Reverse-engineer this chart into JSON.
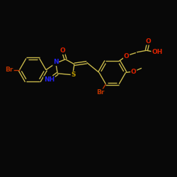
{
  "bg_color": "#080808",
  "bond_color": "#c8b84a",
  "atom_colors": {
    "O": "#dd2200",
    "N": "#2222ee",
    "S": "#bb9900",
    "Br": "#bb3300",
    "C": "#c8b84a"
  },
  "bond_width": 1.0,
  "font_size": 6.5,
  "xlim": [
    0,
    10
  ],
  "ylim": [
    0,
    10
  ]
}
